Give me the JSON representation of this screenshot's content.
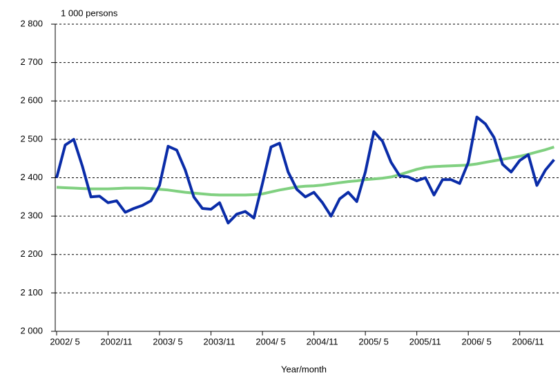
{
  "chart_data": {
    "type": "line",
    "y_label": "1 000 persons",
    "x_label": "Year/month",
    "categories": [
      "2002/ 5",
      null,
      null,
      null,
      null,
      null,
      "2002/11",
      null,
      null,
      null,
      null,
      null,
      "2003/ 5",
      null,
      null,
      null,
      null,
      null,
      "2003/11",
      null,
      null,
      null,
      null,
      null,
      "2004/ 5",
      null,
      null,
      null,
      null,
      null,
      "2004/11",
      null,
      null,
      null,
      null,
      null,
      "2005/ 5",
      null,
      null,
      null,
      null,
      null,
      "2005/11",
      null,
      null,
      null,
      null,
      null,
      "2006/ 5",
      null,
      null,
      null,
      null,
      null,
      "2006/11",
      null,
      null,
      null,
      null
    ],
    "series": [
      {
        "color": "#80d080",
        "values": [
          2375,
          2374,
          2373,
          2372,
          2371,
          2371,
          2371,
          2372,
          2373,
          2373,
          2373,
          2372,
          2370,
          2368,
          2365,
          2362,
          2360,
          2358,
          2356,
          2355,
          2355,
          2355,
          2355,
          2356,
          2358,
          2363,
          2368,
          2372,
          2376,
          2378,
          2379,
          2381,
          2384,
          2387,
          2390,
          2392,
          2395,
          2397,
          2399,
          2402,
          2408,
          2415,
          2422,
          2427,
          2429,
          2430,
          2431,
          2432,
          2433,
          2436,
          2440,
          2444,
          2448,
          2452,
          2456,
          2461,
          2467,
          2473,
          2480
        ]
      },
      {
        "color": "#0a2ca8",
        "values": [
          2400,
          2485,
          2500,
          2430,
          2350,
          2352,
          2335,
          2340,
          2310,
          2320,
          2328,
          2340,
          2380,
          2482,
          2472,
          2420,
          2350,
          2320,
          2318,
          2335,
          2282,
          2305,
          2312,
          2295,
          2385,
          2480,
          2490,
          2415,
          2370,
          2350,
          2362,
          2335,
          2300,
          2345,
          2362,
          2338,
          2415,
          2520,
          2495,
          2440,
          2405,
          2402,
          2392,
          2400,
          2355,
          2395,
          2395,
          2385,
          2440,
          2558,
          2540,
          2505,
          2435,
          2415,
          2445,
          2460,
          2380,
          2420,
          2447
        ]
      }
    ],
    "ylim": [
      2000,
      2800
    ],
    "yticks": [
      {
        "value": 2000,
        "label": "2 000"
      },
      {
        "value": 2100,
        "label": "2 100"
      },
      {
        "value": 2200,
        "label": "2 200"
      },
      {
        "value": 2300,
        "label": "2 300"
      },
      {
        "value": 2400,
        "label": "2 400"
      },
      {
        "value": 2500,
        "label": "2 500"
      },
      {
        "value": 2600,
        "label": "2 600"
      },
      {
        "value": 2700,
        "label": "2 700"
      },
      {
        "value": 2800,
        "label": "2 800"
      }
    ],
    "grid": true
  }
}
